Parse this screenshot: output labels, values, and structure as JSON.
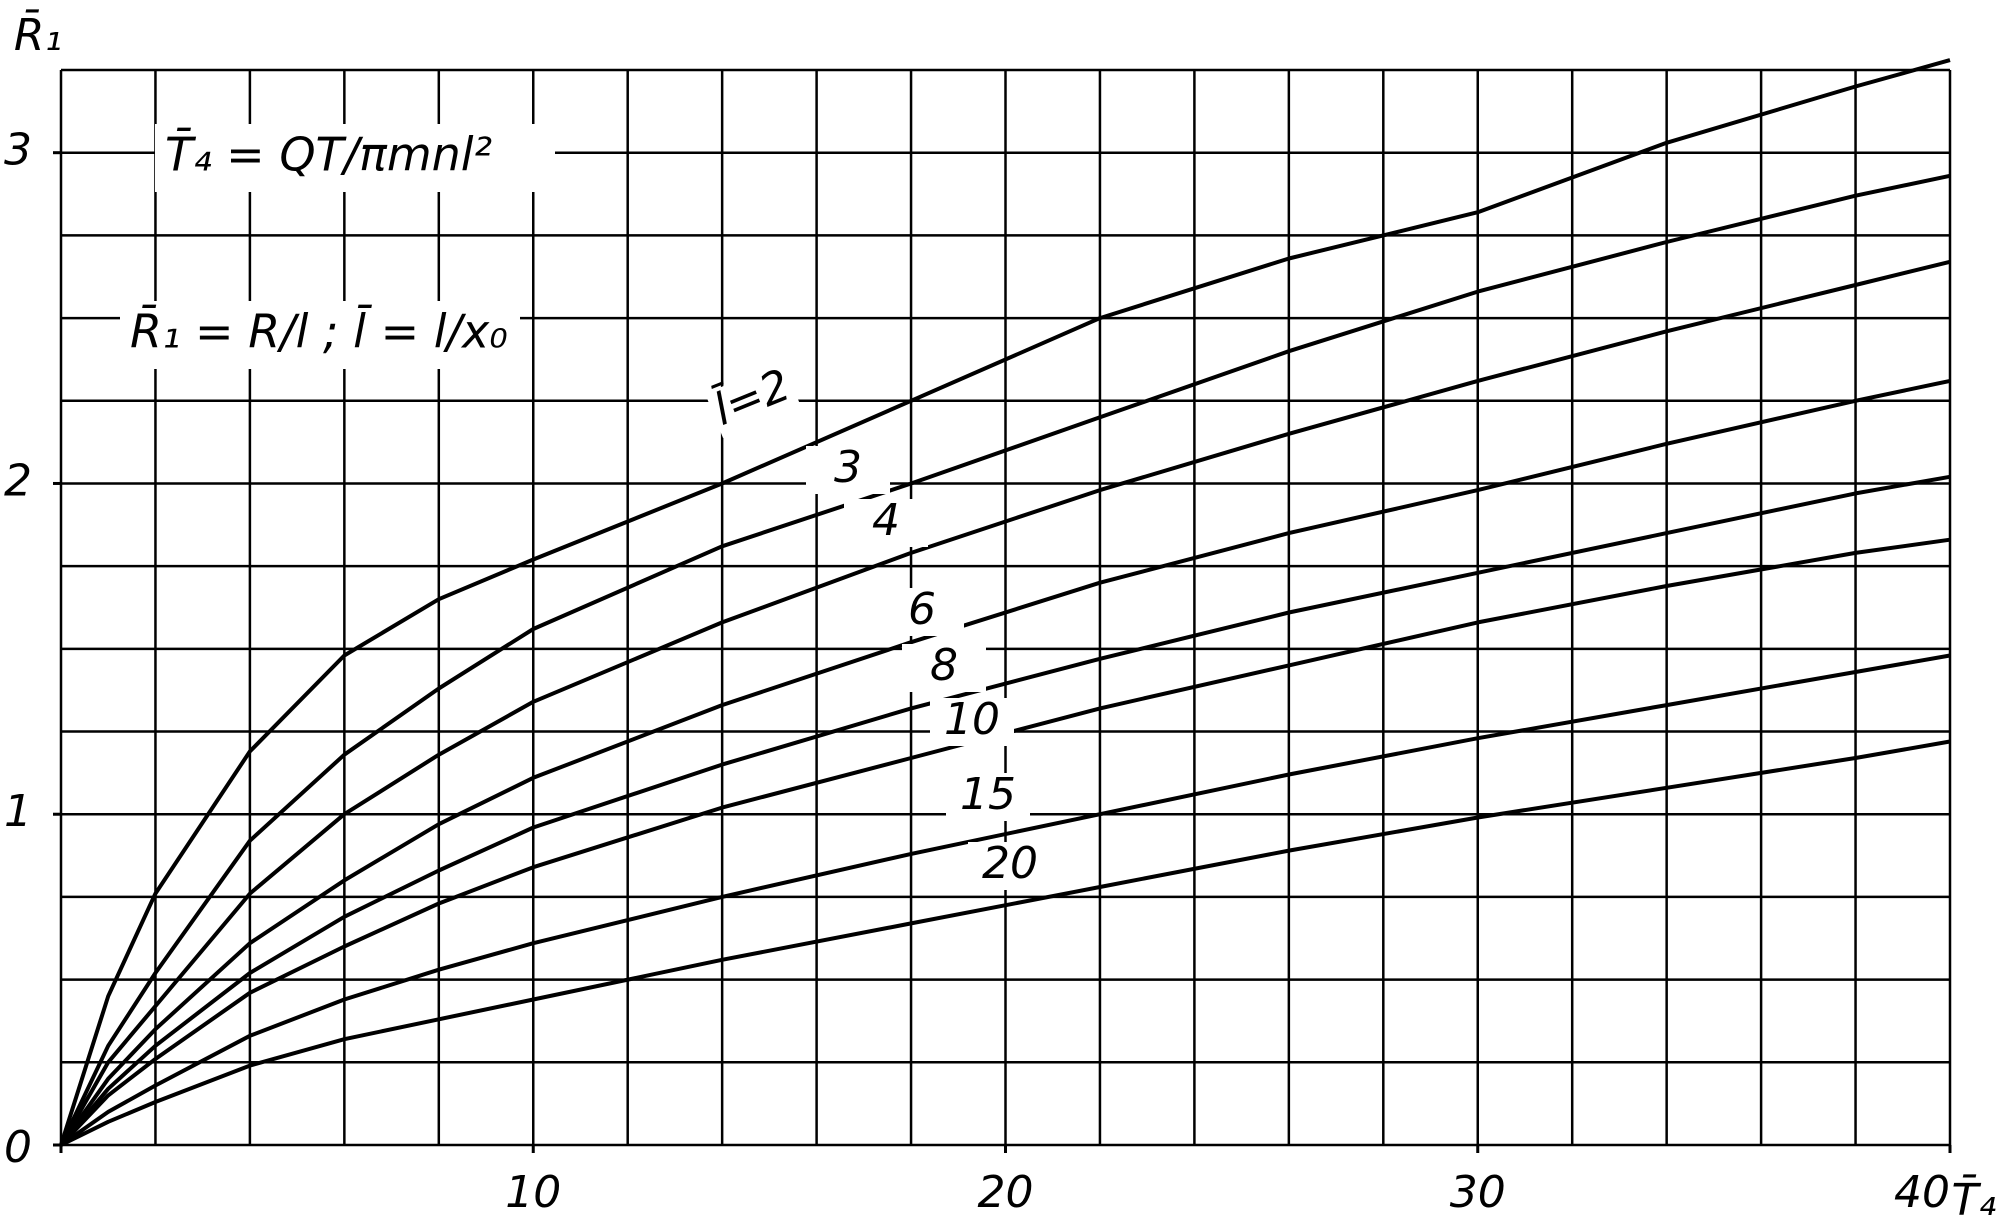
{
  "chart_data": {
    "type": "line",
    "x_label": "T̄₄",
    "y_label": "R̄₁",
    "annotations": [
      "T̄₄ = QT/πmnl²",
      "R̄₁ = R/l ; l̄ = l/x₀"
    ],
    "x": [
      0,
      1,
      2,
      4,
      6,
      8,
      10,
      14,
      18,
      22,
      26,
      30,
      34,
      38,
      40
    ],
    "series": [
      {
        "name": "l̄=2",
        "color": "#000000",
        "values": [
          0,
          0.45,
          0.76,
          1.19,
          1.48,
          1.65,
          1.77,
          2.0,
          2.25,
          2.5,
          2.68,
          2.82,
          3.03,
          3.2,
          3.28
        ]
      },
      {
        "name": "3",
        "color": "#000000",
        "values": [
          0,
          0.3,
          0.52,
          0.92,
          1.18,
          1.38,
          1.56,
          1.81,
          2.0,
          2.2,
          2.4,
          2.58,
          2.73,
          2.87,
          2.93
        ]
      },
      {
        "name": "4",
        "color": "#000000",
        "values": [
          0,
          0.25,
          0.42,
          0.76,
          1.0,
          1.18,
          1.34,
          1.58,
          1.79,
          1.98,
          2.15,
          2.31,
          2.46,
          2.6,
          2.67
        ]
      },
      {
        "name": "6",
        "color": "#000000",
        "values": [
          0,
          0.2,
          0.35,
          0.61,
          0.8,
          0.97,
          1.11,
          1.33,
          1.52,
          1.7,
          1.85,
          1.98,
          2.12,
          2.25,
          2.31
        ]
      },
      {
        "name": "8",
        "color": "#000000",
        "values": [
          0,
          0.17,
          0.3,
          0.52,
          0.69,
          0.83,
          0.96,
          1.15,
          1.32,
          1.47,
          1.61,
          1.73,
          1.85,
          1.97,
          2.02
        ]
      },
      {
        "name": "10",
        "color": "#000000",
        "values": [
          0,
          0.15,
          0.26,
          0.46,
          0.6,
          0.73,
          0.84,
          1.02,
          1.17,
          1.32,
          1.45,
          1.58,
          1.69,
          1.79,
          1.83
        ]
      },
      {
        "name": "15",
        "color": "#000000",
        "values": [
          0,
          0.1,
          0.18,
          0.33,
          0.44,
          0.53,
          0.61,
          0.75,
          0.88,
          1.0,
          1.12,
          1.23,
          1.33,
          1.43,
          1.48
        ]
      },
      {
        "name": "20",
        "color": "#000000",
        "values": [
          0,
          0.07,
          0.13,
          0.24,
          0.32,
          0.38,
          0.44,
          0.56,
          0.67,
          0.78,
          0.89,
          0.99,
          1.08,
          1.17,
          1.22
        ]
      }
    ],
    "xlim": [
      0,
      40
    ],
    "ylim": [
      0,
      3.25
    ],
    "xticks": [
      0,
      10,
      20,
      30,
      40
    ],
    "yticks": [
      0,
      1,
      2,
      3
    ],
    "xgrid": [
      0,
      2,
      4,
      6,
      8,
      10,
      12,
      14,
      16,
      18,
      20,
      22,
      24,
      26,
      28,
      30,
      32,
      34,
      36,
      38,
      40
    ],
    "ygrid": [
      0,
      0.25,
      0.5,
      0.75,
      1,
      1.25,
      1.5,
      1.75,
      2,
      2.25,
      2.5,
      2.75,
      3,
      3.25
    ],
    "grid": true
  }
}
